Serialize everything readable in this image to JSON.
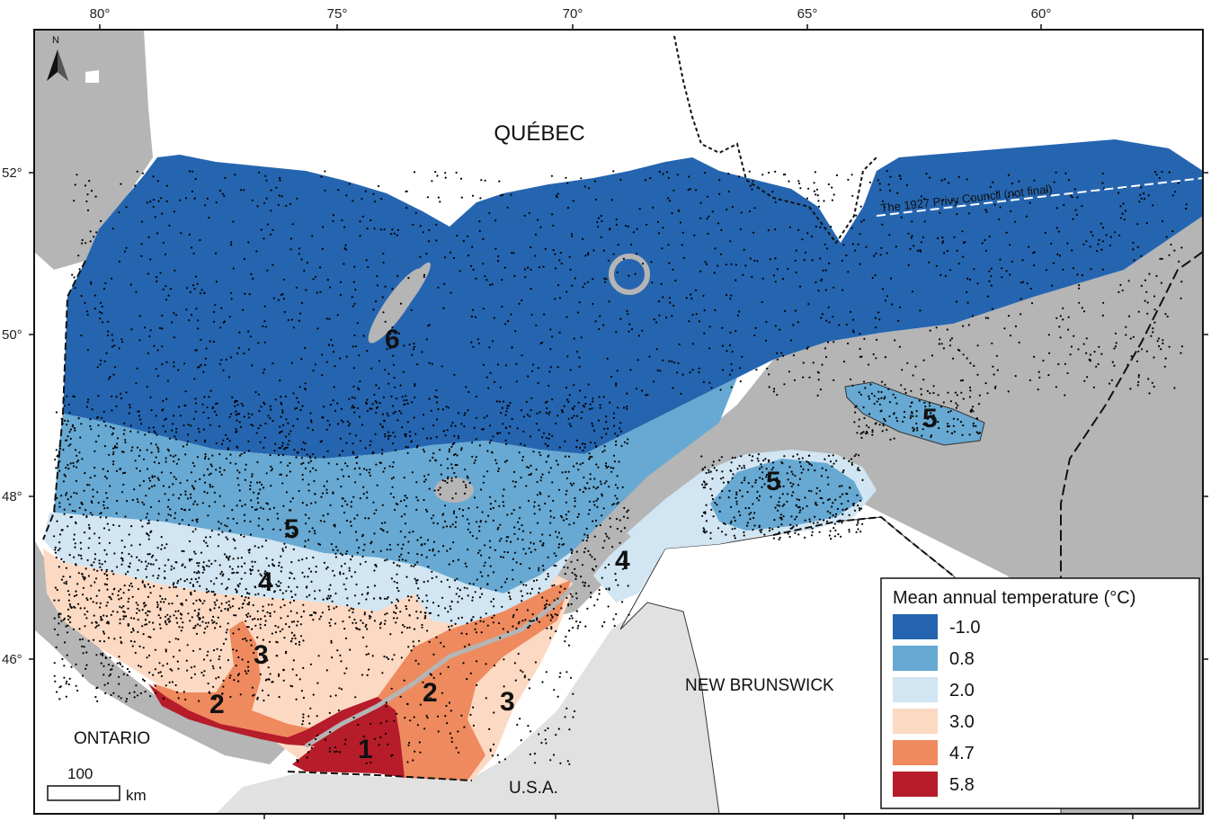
{
  "colors": {
    "zone6": "#2565b0",
    "zone5": "#67a9d2",
    "zone4": "#d1e5f2",
    "zone3": "#fcd9c3",
    "zone2": "#ee8a5e",
    "zone1": "#b61c2a",
    "water": "#b5b5b5",
    "land_other": "#e1e1e1",
    "frame": "#111111"
  },
  "axes": {
    "longitudes": [
      "80°",
      "75°",
      "70°",
      "65°",
      "60°"
    ],
    "latitudes": [
      "52°",
      "50°",
      "48°",
      "46°"
    ]
  },
  "labels": {
    "quebec": "QUÉBEC",
    "ontario": "ONTARIO",
    "new_brunswick": "NEW BRUNSWICK",
    "usa": "U.S.A.",
    "privy_council": "The 1927 Privy Council (not final)",
    "north": "N"
  },
  "scale_bar": {
    "value": "100",
    "unit": "km"
  },
  "zones": [
    {
      "number": "6"
    },
    {
      "number": "5"
    },
    {
      "number": "5"
    },
    {
      "number": "5"
    },
    {
      "number": "4"
    },
    {
      "number": "4"
    },
    {
      "number": "3"
    },
    {
      "number": "3"
    },
    {
      "number": "2"
    },
    {
      "number": "2"
    },
    {
      "number": "1"
    }
  ],
  "legend": {
    "title": "Mean annual temperature (°C)",
    "items": [
      {
        "label": "-1.0",
        "color": "#2565b0"
      },
      {
        "label": "0.8",
        "color": "#67a9d2"
      },
      {
        "label": "2.0",
        "color": "#d1e5f2"
      },
      {
        "label": "3.0",
        "color": "#fcd9c3"
      },
      {
        "label": "4.7",
        "color": "#ee8a5e"
      },
      {
        "label": "5.8",
        "color": "#b61c2a"
      }
    ]
  }
}
